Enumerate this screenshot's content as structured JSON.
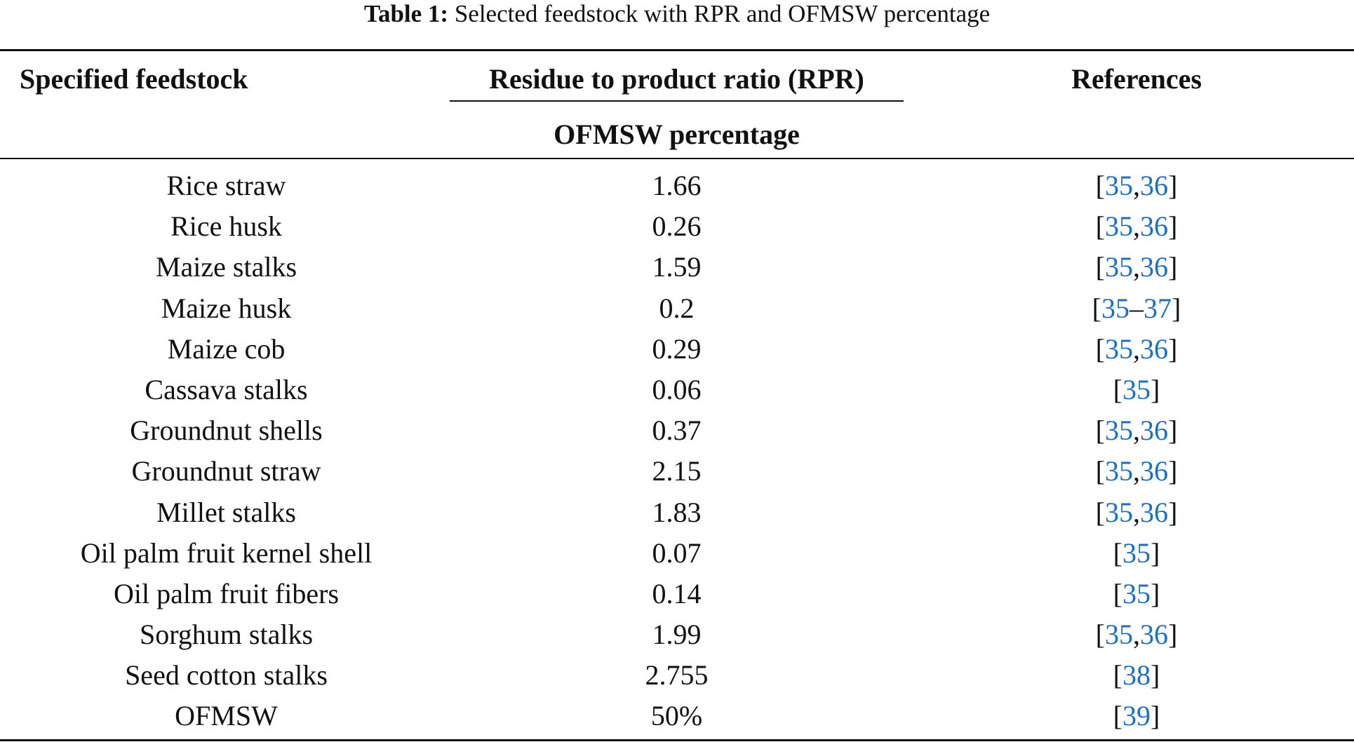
{
  "caption": {
    "label": "Table 1:",
    "text": " Selected feedstock with RPR and OFMSW percentage"
  },
  "header": {
    "feedstock": "Specified feedstock",
    "rpr": "Residue to product ratio (RPR)",
    "ofmsw": "OFMSW percentage",
    "references": "References"
  },
  "colors": {
    "text": "#111111",
    "link": "#1a6fc4"
  },
  "rows": [
    {
      "feedstock": "Rice straw",
      "value": "1.66",
      "refs": [
        "35",
        "36"
      ],
      "sep": ","
    },
    {
      "feedstock": "Rice husk",
      "value": "0.26",
      "refs": [
        "35",
        "36"
      ],
      "sep": ","
    },
    {
      "feedstock": "Maize stalks",
      "value": "1.59",
      "refs": [
        "35",
        "36"
      ],
      "sep": ","
    },
    {
      "feedstock": "Maize husk",
      "value": "0.2",
      "refs": [
        "35",
        "37"
      ],
      "sep": "–"
    },
    {
      "feedstock": "Maize cob",
      "value": "0.29",
      "refs": [
        "35",
        "36"
      ],
      "sep": ","
    },
    {
      "feedstock": "Cassava stalks",
      "value": "0.06",
      "refs": [
        "35"
      ],
      "sep": ""
    },
    {
      "feedstock": "Groundnut shells",
      "value": "0.37",
      "refs": [
        "35",
        "36"
      ],
      "sep": ","
    },
    {
      "feedstock": "Groundnut straw",
      "value": "2.15",
      "refs": [
        "35",
        "36"
      ],
      "sep": ","
    },
    {
      "feedstock": "Millet stalks",
      "value": "1.83",
      "refs": [
        "35",
        "36"
      ],
      "sep": ","
    },
    {
      "feedstock": "Oil palm fruit kernel shell",
      "value": "0.07",
      "refs": [
        "35"
      ],
      "sep": ""
    },
    {
      "feedstock": "Oil palm fruit fibers",
      "value": "0.14",
      "refs": [
        "35"
      ],
      "sep": ""
    },
    {
      "feedstock": "Sorghum stalks",
      "value": "1.99",
      "refs": [
        "35",
        "36"
      ],
      "sep": ","
    },
    {
      "feedstock": "Seed cotton stalks",
      "value": "2.755",
      "refs": [
        "38"
      ],
      "sep": ""
    },
    {
      "feedstock": "OFMSW",
      "value": "50%",
      "refs": [
        "39"
      ],
      "sep": ""
    }
  ]
}
